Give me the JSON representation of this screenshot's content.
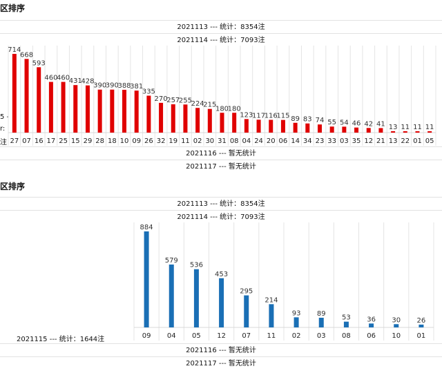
{
  "section1": {
    "title": "区排序",
    "rows_top": [
      "2021113 --- 统计：8354注",
      "2021114 --- 统计：7093注"
    ],
    "side_labels": [
      "5 -",
      "r:",
      "注"
    ],
    "rows_bottom": [
      "2021116 --- 暂无统计",
      "2021117 --- 暂无统计"
    ],
    "bar_color": "#e00000"
  },
  "section2": {
    "title": "区排序",
    "rows_top": [
      "2021113 --- 统计：8354注",
      "2021114 --- 统计：7093注"
    ],
    "left_label": "2021115 --- 统计：1644注",
    "rows_bottom": [
      "2021116 --- 暂无统计",
      "2021117 --- 暂无统计"
    ],
    "bar_color": "#1a6fb5"
  },
  "chart_data": [
    {
      "type": "bar",
      "categories": [
        "27",
        "07",
        "16",
        "17",
        "25",
        "15",
        "29",
        "28",
        "18",
        "10",
        "09",
        "26",
        "32",
        "19",
        "11",
        "02",
        "30",
        "31",
        "08",
        "04",
        "24",
        "20",
        "06",
        "14",
        "34",
        "23",
        "33",
        "03",
        "35",
        "12",
        "21",
        "13",
        "22",
        "01",
        "05"
      ],
      "values": [
        714,
        668,
        593,
        460,
        460,
        431,
        428,
        390,
        390,
        388,
        381,
        335,
        270,
        257,
        255,
        224,
        215,
        180,
        180,
        123,
        117,
        116,
        115,
        89,
        83,
        74,
        55,
        54,
        46,
        42,
        41,
        13,
        11,
        11,
        11
      ],
      "color": "#e00000",
      "grid": true
    },
    {
      "type": "bar",
      "categories": [
        "09",
        "04",
        "05",
        "12",
        "07",
        "11",
        "02",
        "03",
        "08",
        "06",
        "10",
        "01"
      ],
      "values": [
        884,
        579,
        536,
        453,
        295,
        214,
        93,
        89,
        53,
        36,
        30,
        26
      ],
      "color": "#1a6fb5",
      "grid": true
    }
  ]
}
